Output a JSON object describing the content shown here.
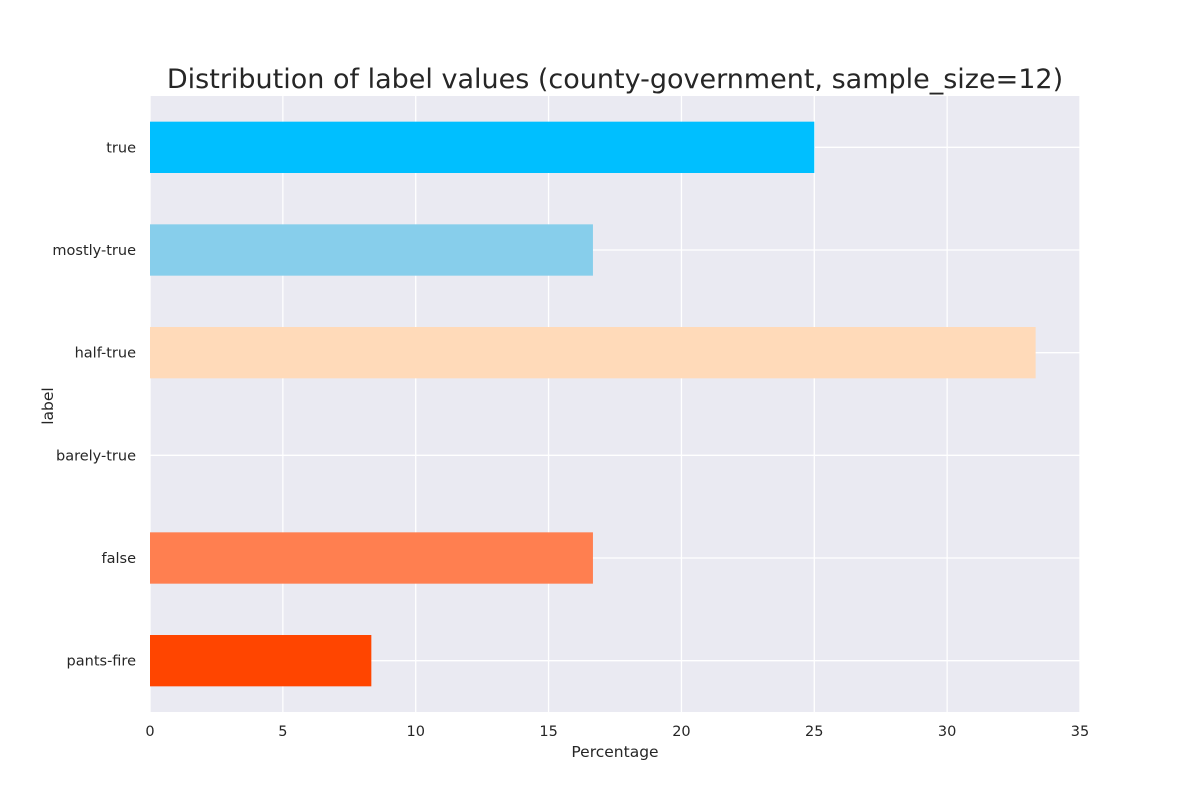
{
  "chart_data": {
    "type": "bar",
    "orientation": "horizontal",
    "title": "Distribution of label values (county-government, sample_size=12)",
    "xlabel": "Percentage",
    "ylabel": "label",
    "categories": [
      "true",
      "mostly-true",
      "half-true",
      "barely-true",
      "false",
      "pants-fire"
    ],
    "values": [
      25.0,
      16.67,
      33.33,
      0.0,
      16.67,
      8.33
    ],
    "colors": [
      "#00bfff",
      "#87ceeb",
      "#ffdab9",
      "#ffa07a",
      "#ff7f50",
      "#ff4500"
    ],
    "xlim": [
      0,
      35
    ],
    "xticks": [
      0,
      5,
      10,
      15,
      20,
      25,
      30,
      35
    ],
    "grid": true,
    "background": "#eaeaf2",
    "grid_color": "#ffffff"
  }
}
